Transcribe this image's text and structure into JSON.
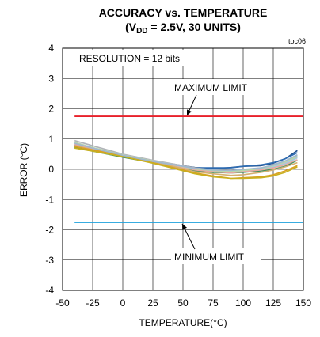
{
  "chart_data": {
    "type": "line",
    "title": "ACCURACY vs. TEMPERATURE",
    "subtitle": {
      "prefix": "(V",
      "subscript": "DD",
      "suffix": " = 2.5V, 30 UNITS)"
    },
    "figure_id": "toc06",
    "xlabel": "TEMPERATURE(°C)",
    "ylabel": "ERROR (°C)",
    "xlim": [
      -50,
      150
    ],
    "ylim": [
      -4,
      4
    ],
    "xticks": [
      -50,
      -25,
      0,
      25,
      50,
      75,
      100,
      125,
      150
    ],
    "yticks": [
      -4,
      -3,
      -2,
      -1,
      0,
      1,
      2,
      3,
      4
    ],
    "grid": true,
    "limits": [
      {
        "name": "MAXIMUM LIMIT",
        "value": 1.75,
        "color": "#e8202a"
      },
      {
        "name": "MINIMUM LIMIT",
        "value": -1.75,
        "color": "#1ba1dc"
      }
    ],
    "annotations": {
      "resolution": "RESOLUTION = 12 bits",
      "max_label": "MAXIMUM LIMIT",
      "min_label": "MINIMUM LIMIT"
    },
    "x": [
      -40,
      -25,
      0,
      25,
      50,
      60,
      75,
      90,
      100,
      115,
      125,
      135,
      145
    ],
    "series": [
      {
        "color": "#1f4e8c",
        "values": [
          0.8,
          0.68,
          0.45,
          0.28,
          0.12,
          0.06,
          0.02,
          0.06,
          0.1,
          0.12,
          0.2,
          0.35,
          0.62
        ]
      },
      {
        "color": "#2f6db3",
        "values": [
          0.75,
          0.62,
          0.42,
          0.25,
          0.1,
          0.05,
          0.05,
          0.05,
          0.1,
          0.15,
          0.22,
          0.35,
          0.55
        ]
      },
      {
        "color": "#3c8f5a",
        "values": [
          0.72,
          0.6,
          0.4,
          0.22,
          0.05,
          -0.05,
          -0.1,
          -0.12,
          -0.1,
          -0.05,
          0.0,
          0.1,
          0.3
        ]
      },
      {
        "color": "#b0b4b8",
        "values": [
          0.95,
          0.78,
          0.5,
          0.3,
          0.12,
          0.05,
          -0.02,
          -0.05,
          -0.02,
          0.05,
          0.15,
          0.28,
          0.45
        ]
      },
      {
        "color": "#c0c4c8",
        "values": [
          0.9,
          0.72,
          0.48,
          0.28,
          0.1,
          0.02,
          -0.05,
          -0.08,
          -0.05,
          0.02,
          0.1,
          0.22,
          0.4
        ]
      },
      {
        "color": "#a8c8e0",
        "values": [
          0.85,
          0.7,
          0.46,
          0.26,
          0.08,
          0.0,
          -0.06,
          -0.1,
          -0.06,
          0.0,
          0.08,
          0.18,
          0.38
        ]
      },
      {
        "color": "#e8a8a0",
        "values": [
          0.82,
          0.68,
          0.45,
          0.25,
          0.06,
          -0.02,
          -0.08,
          -0.12,
          -0.08,
          -0.02,
          0.05,
          0.15,
          0.32
        ]
      },
      {
        "color": "#d4b070",
        "values": [
          0.78,
          0.65,
          0.44,
          0.24,
          0.02,
          -0.08,
          -0.15,
          -0.2,
          -0.18,
          -0.1,
          -0.02,
          0.08,
          0.22
        ]
      },
      {
        "color": "#d8a020",
        "values": [
          0.75,
          0.64,
          0.44,
          0.22,
          -0.02,
          -0.12,
          -0.22,
          -0.3,
          -0.28,
          -0.25,
          -0.18,
          -0.05,
          0.12
        ]
      },
      {
        "color": "#c8b020",
        "values": [
          0.7,
          0.6,
          0.42,
          0.2,
          -0.05,
          -0.15,
          -0.25,
          -0.3,
          -0.3,
          -0.28,
          -0.22,
          -0.1,
          0.08
        ]
      },
      {
        "color": "#b8d8a8",
        "values": [
          0.88,
          0.72,
          0.47,
          0.27,
          0.09,
          0.01,
          -0.04,
          -0.07,
          -0.04,
          0.03,
          0.12,
          0.25,
          0.42
        ]
      },
      {
        "color": "#9fb7d0",
        "values": [
          0.86,
          0.7,
          0.46,
          0.26,
          0.1,
          0.03,
          -0.02,
          -0.04,
          0.0,
          0.05,
          0.14,
          0.28,
          0.48
        ]
      }
    ]
  }
}
